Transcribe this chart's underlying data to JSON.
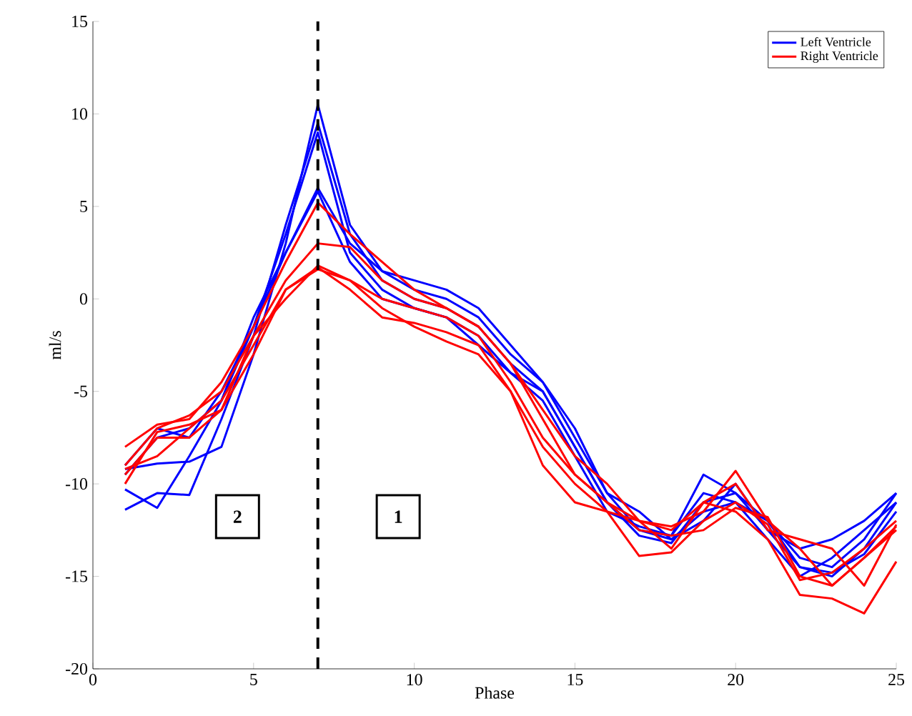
{
  "chart_data": {
    "type": "line",
    "xlabel": "Phase",
    "ylabel": "ml/s",
    "x": [
      1,
      2,
      3,
      4,
      5,
      6,
      7,
      8,
      9,
      10,
      11,
      12,
      13,
      14,
      15,
      16,
      17,
      18,
      19,
      20,
      21,
      22,
      23,
      24,
      25
    ],
    "xlim": [
      0,
      25
    ],
    "xticks": [
      0,
      5,
      10,
      15,
      20,
      25
    ],
    "ylim": [
      -20,
      15
    ],
    "yticks": [
      -20,
      -15,
      -10,
      -5,
      0,
      5,
      10,
      15
    ],
    "legend": "top right",
    "grid": false,
    "marker": "none",
    "line_style": "solid",
    "series": [
      {
        "name": "Left Ventricle",
        "color": "#0000ff",
        "values": [
          -9.2,
          -8.9,
          -8.8,
          -8.0,
          -3,
          3,
          10.5,
          4,
          1.5,
          0.5,
          0,
          -1,
          -3,
          -4.5,
          -7.5,
          -10.5,
          -12.5,
          -13,
          -11.5,
          -11,
          -12,
          -14,
          -14.5,
          -13,
          -10.5
        ]
      },
      {
        "color": "#0000ff",
        "values": [
          -11.4,
          -10.5,
          -10.6,
          -6.5,
          -2,
          4,
          9.5,
          3.5,
          1,
          0,
          -0.5,
          -1.5,
          -3.5,
          -5,
          -8,
          -11,
          -12.8,
          -13.2,
          -11,
          -10.5,
          -12.5,
          -14.5,
          -15,
          -13.5,
          -11
        ]
      },
      {
        "color": "#0000ff",
        "values": [
          -10.3,
          -11.3,
          -8.5,
          -5.5,
          -1.5,
          3.5,
          9,
          2.5,
          0.5,
          -0.5,
          -1,
          -2,
          -4,
          -5.5,
          -8.5,
          -11.5,
          -12.3,
          -12.8,
          -10.5,
          -11,
          -13,
          -15,
          -14,
          -12.5,
          -11
        ]
      },
      {
        "color": "#0000ff",
        "values": [
          -9.5,
          -7.5,
          -7.0,
          -5.5,
          -1,
          2.5,
          6,
          3,
          1.5,
          1,
          0.5,
          -0.5,
          -2.5,
          -4.5,
          -7,
          -10.5,
          -11.5,
          -13,
          -12,
          -10,
          -12.5,
          -13.5,
          -13,
          -12,
          -10.5
        ]
      },
      {
        "color": "#0000ff",
        "values": [
          -9,
          -7,
          -7.5,
          -5,
          -1.5,
          2.5,
          5.8,
          2,
          0,
          -0.5,
          -1,
          -2.5,
          -4,
          -5,
          -8,
          -11,
          -12.5,
          -12.8,
          -9.5,
          -10.5,
          -12,
          -14.5,
          -14.8,
          -13.8,
          -11.5
        ]
      },
      {
        "name": "Right Ventricle",
        "color": "#ff0000",
        "values": [
          -8,
          -6.8,
          -6.5,
          -4.5,
          -1.5,
          2,
          5.2,
          3.5,
          2,
          0.5,
          -0.5,
          -1.5,
          -3.5,
          -6,
          -8.5,
          -10,
          -12,
          -12.5,
          -11,
          -10,
          -12.5,
          -13,
          -13.5,
          -15.5,
          -12.2
        ]
      },
      {
        "color": "#ff0000",
        "values": [
          -9,
          -7,
          -6.3,
          -5,
          -2,
          1,
          3,
          2.8,
          1,
          0,
          -0.5,
          -1.5,
          -3.5,
          -6.5,
          -9.5,
          -11,
          -12,
          -12.3,
          -11.5,
          -9.3,
          -12,
          -13.5,
          -15.5,
          -14,
          -12.5
        ]
      },
      {
        "color": "#ff0000",
        "values": [
          -9.5,
          -7.5,
          -7.5,
          -6,
          -2,
          0,
          1.8,
          1,
          -0.5,
          -1.5,
          -2.3,
          -3,
          -5,
          -9,
          -11,
          -11.5,
          -12,
          -13.5,
          -11,
          -11.5,
          -13,
          -16,
          -16.2,
          -17,
          -14.2
        ]
      },
      {
        "color": "#ff0000",
        "values": [
          -10,
          -7.2,
          -6.8,
          -6,
          -3,
          0.5,
          1.7,
          0.5,
          -1,
          -1.3,
          -1.8,
          -2.5,
          -5,
          -8,
          -10,
          -11.5,
          -13.9,
          -13.7,
          -12,
          -11,
          -12.2,
          -15.2,
          -14.8,
          -13.5,
          -12
        ]
      },
      {
        "color": "#ff0000",
        "values": [
          -9.2,
          -8.5,
          -7,
          -5.5,
          -2.5,
          0.5,
          1.6,
          1,
          0,
          -0.5,
          -1,
          -2,
          -4.5,
          -7.5,
          -9.5,
          -11,
          -12.5,
          -12.8,
          -12.5,
          -11.3,
          -11.8,
          -15,
          -15.5,
          -14,
          -12.3
        ]
      }
    ],
    "ref_lines": [
      {
        "axis": "x",
        "value": 7,
        "color": "#000000",
        "line_style": "dashed"
      }
    ],
    "annotations": [
      "2",
      "1"
    ]
  }
}
